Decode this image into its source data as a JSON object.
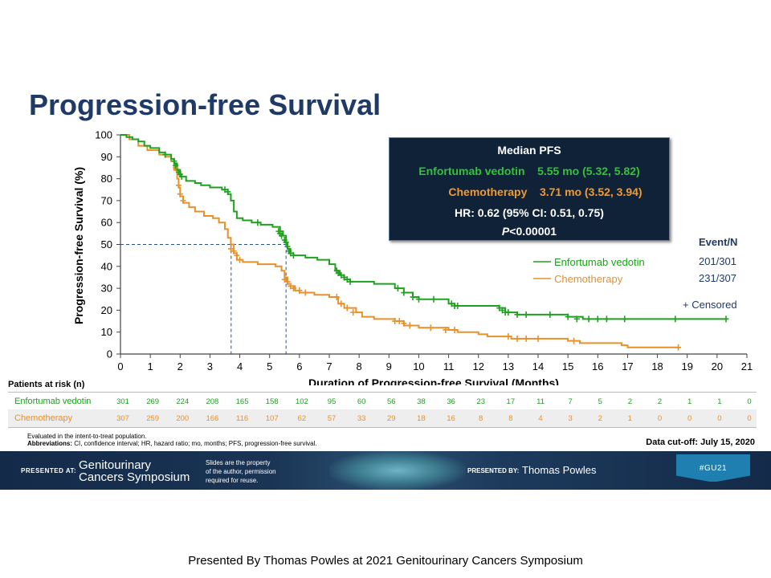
{
  "slide_title": "Progression-free Survival",
  "median_box": {
    "heading": "Median PFS",
    "ev_name": "Enfortumab vedotin",
    "ev_value": "5.55 mo (5.32, 5.82)",
    "ch_name": "Chemotherapy",
    "ch_value": "3.71 mo  (3.52, 3.94)",
    "hr": "HR: 0.62 (95% CI: 0.51, 0.75)",
    "p_italic": "P",
    "p_rest": "<0.00001"
  },
  "events": {
    "header": "Event/N",
    "ev": "201/301",
    "ch": "231/307",
    "censored": "+ Censored"
  },
  "risk_table": {
    "header": "Patients at risk (n)",
    "rows": [
      {
        "label": "Enfortumab vedotin",
        "values": [
          "301",
          "269",
          "224",
          "208",
          "165",
          "158",
          "102",
          "95",
          "60",
          "56",
          "38",
          "36",
          "23",
          "17",
          "11",
          "7",
          "5",
          "2",
          "2",
          "1",
          "1",
          "0"
        ]
      },
      {
        "label": "Chemotherapy",
        "values": [
          "307",
          "259",
          "200",
          "166",
          "116",
          "107",
          "62",
          "57",
          "33",
          "29",
          "18",
          "16",
          "8",
          "8",
          "4",
          "3",
          "2",
          "1",
          "0",
          "0",
          "0",
          "0"
        ]
      }
    ]
  },
  "footnotes": {
    "line1": "Evaluated in the intent-to-treat population.",
    "line2_bold": "Abbreviations:",
    "line2_rest": " CI, confidence interval; HR, hazard ratio; mo, months; PFS, progression-free survival."
  },
  "cutoff": "Data cut-off: July 15, 2020",
  "banner": {
    "presented_at": "PRESENTED AT:",
    "symposium_line1": "Genitourinary",
    "symposium_line2": "Cancers Symposium",
    "rights_line1": "Slides are the property",
    "rights_line2": "of the author, permission",
    "rights_line3": "required for reuse.",
    "presented_by": "PRESENTED BY:",
    "presenter": "Thomas Powles",
    "tag": "#GU21"
  },
  "caption": "Presented By Thomas Powles at 2021 Genitourinary  Cancers Symposium",
  "colors": {
    "ev": "#1ea11e",
    "ch": "#e8902a",
    "title": "#1f3a66",
    "box_bg": "#0f2238"
  },
  "chart_data": {
    "type": "line",
    "title": "",
    "xlabel": "Duration of Progression-free Survival (Months)",
    "ylabel": "Progression-free Survival (%)",
    "xlim": [
      0,
      21
    ],
    "ylim": [
      0,
      100
    ],
    "xticks": [
      0,
      1,
      2,
      3,
      4,
      5,
      6,
      7,
      8,
      9,
      10,
      11,
      12,
      13,
      14,
      15,
      16,
      17,
      18,
      19,
      20,
      21
    ],
    "yticks": [
      0,
      10,
      20,
      30,
      40,
      50,
      60,
      70,
      80,
      90,
      100
    ],
    "legend": "right",
    "reference_median_y": 50,
    "series": [
      {
        "name": "Enfortumab vedotin",
        "color": "#1ea11e",
        "steps": [
          [
            0,
            100
          ],
          [
            0.2,
            99
          ],
          [
            0.4,
            98
          ],
          [
            0.6,
            97
          ],
          [
            0.8,
            95
          ],
          [
            1,
            94
          ],
          [
            1.3,
            92
          ],
          [
            1.5,
            91
          ],
          [
            1.7,
            89
          ],
          [
            1.8,
            87
          ],
          [
            1.9,
            84
          ],
          [
            2,
            81
          ],
          [
            2.2,
            79
          ],
          [
            2.5,
            78
          ],
          [
            2.7,
            77
          ],
          [
            3,
            76
          ],
          [
            3.4,
            75
          ],
          [
            3.6,
            73
          ],
          [
            3.7,
            70
          ],
          [
            3.8,
            65
          ],
          [
            3.9,
            62
          ],
          [
            4.1,
            61
          ],
          [
            4.4,
            60
          ],
          [
            4.7,
            59
          ],
          [
            5.1,
            58
          ],
          [
            5.35,
            56
          ],
          [
            5.45,
            54
          ],
          [
            5.55,
            51
          ],
          [
            5.6,
            48
          ],
          [
            5.7,
            46
          ],
          [
            5.8,
            45
          ],
          [
            6.2,
            44
          ],
          [
            6.6,
            43
          ],
          [
            7,
            41
          ],
          [
            7.2,
            38
          ],
          [
            7.35,
            36
          ],
          [
            7.5,
            34
          ],
          [
            7.7,
            33
          ],
          [
            8.5,
            32
          ],
          [
            9.2,
            30
          ],
          [
            9.5,
            28
          ],
          [
            9.8,
            26
          ],
          [
            10,
            25
          ],
          [
            11,
            23
          ],
          [
            11.2,
            22
          ],
          [
            12.7,
            21
          ],
          [
            12.9,
            19
          ],
          [
            13.3,
            18
          ],
          [
            15,
            17
          ],
          [
            15.5,
            16
          ],
          [
            20.3,
            16
          ]
        ],
        "censored": [
          [
            1.5,
            91
          ],
          [
            1.8,
            88
          ],
          [
            1.85,
            86
          ],
          [
            1.95,
            83
          ],
          [
            2,
            82
          ],
          [
            2.05,
            81
          ],
          [
            3.5,
            75
          ],
          [
            3.6,
            74
          ],
          [
            4.6,
            60
          ],
          [
            5.3,
            56
          ],
          [
            5.35,
            55
          ],
          [
            5.4,
            54
          ],
          [
            5.5,
            52
          ],
          [
            5.55,
            51
          ],
          [
            5.6,
            49
          ],
          [
            5.65,
            47
          ],
          [
            5.7,
            46
          ],
          [
            5.8,
            45
          ],
          [
            7.25,
            38
          ],
          [
            7.3,
            37
          ],
          [
            7.4,
            36
          ],
          [
            7.5,
            35
          ],
          [
            7.6,
            34
          ],
          [
            7.7,
            33
          ],
          [
            9.3,
            30
          ],
          [
            9.5,
            28
          ],
          [
            9.8,
            26
          ],
          [
            10,
            25
          ],
          [
            10.5,
            25
          ],
          [
            11.1,
            23
          ],
          [
            11.2,
            22
          ],
          [
            11.3,
            22
          ],
          [
            12.7,
            21
          ],
          [
            12.8,
            20
          ],
          [
            12.9,
            19
          ],
          [
            13,
            19
          ],
          [
            13.3,
            18
          ],
          [
            13.6,
            18
          ],
          [
            14.4,
            18
          ],
          [
            15,
            17
          ],
          [
            15.3,
            16
          ],
          [
            15.7,
            16
          ],
          [
            16,
            16
          ],
          [
            16.3,
            16
          ],
          [
            16.9,
            16
          ],
          [
            18.6,
            16
          ],
          [
            20.3,
            16
          ]
        ]
      },
      {
        "name": "Chemotherapy",
        "color": "#e8902a",
        "steps": [
          [
            0,
            100
          ],
          [
            0.3,
            98
          ],
          [
            0.6,
            95
          ],
          [
            0.9,
            93
          ],
          [
            1.3,
            91
          ],
          [
            1.5,
            90
          ],
          [
            1.7,
            88
          ],
          [
            1.8,
            84
          ],
          [
            1.9,
            80
          ],
          [
            1.95,
            76
          ],
          [
            2,
            72
          ],
          [
            2.1,
            69
          ],
          [
            2.3,
            67
          ],
          [
            2.5,
            65
          ],
          [
            2.8,
            63
          ],
          [
            3.1,
            62
          ],
          [
            3.3,
            60
          ],
          [
            3.5,
            57
          ],
          [
            3.6,
            53
          ],
          [
            3.7,
            50
          ],
          [
            3.8,
            46
          ],
          [
            3.9,
            43
          ],
          [
            4.1,
            42
          ],
          [
            4.6,
            41
          ],
          [
            5.2,
            40
          ],
          [
            5.4,
            38
          ],
          [
            5.5,
            35
          ],
          [
            5.6,
            32
          ],
          [
            5.7,
            31
          ],
          [
            5.85,
            29
          ],
          [
            6,
            28
          ],
          [
            6.5,
            27
          ],
          [
            7,
            26
          ],
          [
            7.3,
            23
          ],
          [
            7.5,
            21
          ],
          [
            7.9,
            19
          ],
          [
            8.1,
            17
          ],
          [
            8.5,
            16
          ],
          [
            9.2,
            15
          ],
          [
            9.5,
            13
          ],
          [
            10,
            12
          ],
          [
            11,
            11
          ],
          [
            11.3,
            10
          ],
          [
            12,
            9
          ],
          [
            12.3,
            8
          ],
          [
            12.9,
            8
          ],
          [
            13.1,
            7
          ],
          [
            15,
            6
          ],
          [
            15.4,
            5
          ],
          [
            16.2,
            5
          ],
          [
            16.8,
            4
          ],
          [
            17,
            3
          ],
          [
            18.7,
            3
          ]
        ],
        "censored": [
          [
            1.85,
            85
          ],
          [
            1.95,
            77
          ],
          [
            2,
            73
          ],
          [
            2.1,
            70
          ],
          [
            3.7,
            48
          ],
          [
            3.8,
            47
          ],
          [
            3.9,
            45
          ],
          [
            4,
            43
          ],
          [
            5.5,
            34
          ],
          [
            5.6,
            33
          ],
          [
            5.7,
            31
          ],
          [
            5.8,
            30
          ],
          [
            6,
            29
          ],
          [
            6.2,
            28
          ],
          [
            7.25,
            26
          ],
          [
            7.4,
            23
          ],
          [
            7.6,
            21
          ],
          [
            7.8,
            19
          ],
          [
            9.2,
            15
          ],
          [
            9.35,
            15
          ],
          [
            9.5,
            14
          ],
          [
            9.7,
            13
          ],
          [
            10.4,
            12
          ],
          [
            10.9,
            11
          ],
          [
            11.2,
            11
          ],
          [
            13,
            8
          ],
          [
            13.3,
            7
          ],
          [
            13.6,
            7
          ],
          [
            14,
            7
          ],
          [
            15.2,
            6
          ],
          [
            18.7,
            3
          ]
        ]
      }
    ]
  }
}
